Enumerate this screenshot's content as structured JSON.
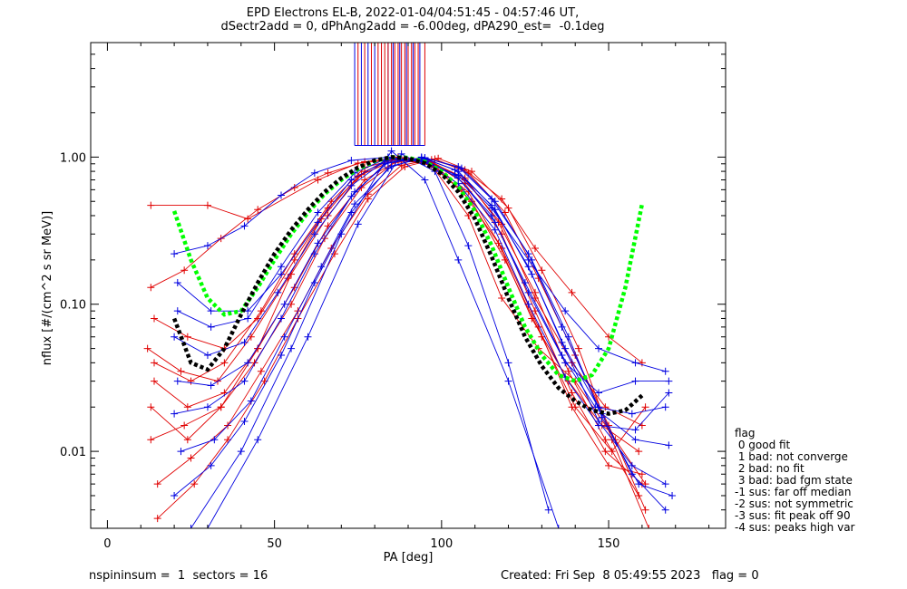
{
  "title_line1": "EPD Electrons EL-B, 2022-01-04/04:51:45 - 04:57:46 UT,",
  "title_line2": "dSectr2add = 0, dPhAng2add = -6.00deg, dPA290_est=  -0.1deg",
  "footer": {
    "left": "nspininsum =  1  sectors = 16",
    "right": "Created: Fri Sep  8 05:49:55 2023   flag = 0"
  },
  "flag_legend": [
    "flag",
    " 0 good fit",
    " 1 bad: not converge",
    " 2 bad: no fit",
    " 3 bad: bad fgm state",
    "-1 sus: far off median",
    "-2 sus: not symmetric",
    "-3 sus: fit peak off 90",
    "-4 sus: peaks high var"
  ],
  "colors": {
    "red_series": "#e00000",
    "blue_series": "#0000e0",
    "green_fit": "#00ff00",
    "black_fit": "#000000"
  },
  "chart_data": {
    "type": "line",
    "xlabel": "PA [deg]",
    "ylabel": "nflux [#/(cm^2 s sr MeV)]",
    "xlim": [
      -5,
      185
    ],
    "ylim": [
      0.003,
      6
    ],
    "yscale": "log",
    "x_ticks": [
      0,
      50,
      100,
      150
    ],
    "y_ticks": [
      {
        "value": 0.01,
        "label": "0.01"
      },
      {
        "value": 0.1,
        "label": "0.10"
      },
      {
        "value": 1.0,
        "label": "1.00"
      }
    ],
    "grid": false,
    "series": [
      {
        "color": "red",
        "x": [
          13,
          30,
          42,
          63,
          75,
          88,
          97,
          108,
          118,
          129,
          140,
          152,
          161
        ],
        "y": [
          0.47,
          0.47,
          0.38,
          0.7,
          0.91,
          0.97,
          0.88,
          0.4,
          0.11,
          0.05,
          0.03,
          0.012,
          0.006
        ]
      },
      {
        "color": "red",
        "x": [
          13,
          23,
          34,
          45,
          56,
          66,
          77,
          87,
          97,
          107,
          118,
          128,
          139,
          150,
          160
        ],
        "y": [
          0.13,
          0.17,
          0.28,
          0.44,
          0.62,
          0.78,
          0.93,
          0.99,
          0.96,
          0.82,
          0.52,
          0.24,
          0.12,
          0.06,
          0.04
        ]
      },
      {
        "color": "red",
        "x": [
          14,
          24,
          35,
          45,
          56,
          66,
          77,
          87,
          97,
          107,
          118,
          128,
          139,
          149,
          160
        ],
        "y": [
          0.08,
          0.06,
          0.05,
          0.08,
          0.2,
          0.45,
          0.8,
          1.0,
          0.93,
          0.7,
          0.35,
          0.11,
          0.04,
          0.02,
          0.015
        ]
      },
      {
        "color": "red",
        "x": [
          12,
          22,
          33,
          43,
          54,
          64,
          75,
          86,
          96,
          106,
          117,
          127,
          138,
          148,
          159
        ],
        "y": [
          0.05,
          0.035,
          0.03,
          0.06,
          0.15,
          0.38,
          0.74,
          0.96,
          0.9,
          0.6,
          0.26,
          0.08,
          0.03,
          0.015,
          0.01
        ]
      },
      {
        "color": "red",
        "x": [
          14,
          24,
          35,
          45,
          56,
          66,
          77,
          87,
          97,
          107,
          118,
          128,
          139,
          149,
          160
        ],
        "y": [
          0.03,
          0.02,
          0.025,
          0.05,
          0.13,
          0.34,
          0.7,
          0.95,
          0.92,
          0.66,
          0.3,
          0.09,
          0.025,
          0.01,
          0.006
        ]
      },
      {
        "color": "red",
        "x": [
          13,
          23,
          34,
          44,
          55,
          65,
          76,
          86,
          96,
          107,
          117,
          128,
          138,
          149,
          159
        ],
        "y": [
          0.012,
          0.015,
          0.02,
          0.04,
          0.1,
          0.28,
          0.62,
          0.92,
          0.94,
          0.72,
          0.36,
          0.12,
          0.035,
          0.012,
          0.005
        ]
      },
      {
        "color": "red",
        "x": [
          15,
          25,
          36,
          46,
          57,
          67,
          78,
          88,
          98,
          108,
          119,
          129,
          140,
          150,
          161
        ],
        "y": [
          0.006,
          0.009,
          0.015,
          0.035,
          0.09,
          0.24,
          0.56,
          0.88,
          0.97,
          0.78,
          0.42,
          0.15,
          0.045,
          0.015,
          0.004
        ]
      },
      {
        "color": "red",
        "x": [
          15,
          26,
          36,
          47,
          57,
          68,
          78,
          89,
          99,
          109,
          120,
          130,
          141,
          151,
          162
        ],
        "y": [
          0.0035,
          0.006,
          0.012,
          0.03,
          0.08,
          0.22,
          0.52,
          0.86,
          0.98,
          0.8,
          0.45,
          0.17,
          0.05,
          0.012,
          0.003
        ]
      },
      {
        "color": "red",
        "x": [
          13,
          24,
          34,
          45,
          55,
          66,
          76,
          87,
          97,
          108,
          118,
          129,
          139,
          150,
          160
        ],
        "y": [
          0.02,
          0.012,
          0.02,
          0.05,
          0.16,
          0.4,
          0.76,
          0.98,
          0.9,
          0.58,
          0.24,
          0.07,
          0.02,
          0.008,
          0.007
        ]
      },
      {
        "color": "red",
        "x": [
          14,
          25,
          35,
          46,
          56,
          67,
          77,
          88,
          98,
          109,
          119,
          130,
          140,
          151,
          161
        ],
        "y": [
          0.04,
          0.03,
          0.04,
          0.09,
          0.22,
          0.5,
          0.85,
          0.99,
          0.86,
          0.5,
          0.2,
          0.06,
          0.02,
          0.01,
          0.02
        ]
      },
      {
        "color": "blue",
        "x": [
          20,
          30,
          41,
          52,
          62,
          73,
          84,
          94,
          105,
          115,
          126,
          137,
          147,
          158,
          167
        ],
        "y": [
          0.22,
          0.25,
          0.34,
          0.55,
          0.78,
          0.95,
          1.0,
          0.94,
          0.75,
          0.45,
          0.2,
          0.09,
          0.05,
          0.04,
          0.035
        ]
      },
      {
        "color": "blue",
        "x": [
          21,
          31,
          42,
          52,
          63,
          73,
          84,
          95,
          105,
          116,
          126,
          137,
          147,
          158,
          168
        ],
        "y": [
          0.14,
          0.09,
          0.09,
          0.16,
          0.36,
          0.7,
          0.97,
          0.96,
          0.72,
          0.36,
          0.12,
          0.04,
          0.025,
          0.03,
          0.03
        ]
      },
      {
        "color": "blue",
        "x": [
          20,
          30,
          41,
          51,
          62,
          73,
          83,
          94,
          104,
          115,
          125,
          136,
          146,
          157,
          167
        ],
        "y": [
          0.06,
          0.045,
          0.055,
          0.12,
          0.3,
          0.64,
          0.94,
          0.97,
          0.76,
          0.4,
          0.14,
          0.045,
          0.02,
          0.018,
          0.02
        ]
      },
      {
        "color": "blue",
        "x": [
          21,
          31,
          42,
          53,
          63,
          74,
          84,
          95,
          105,
          116,
          127,
          137,
          148,
          158,
          168
        ],
        "y": [
          0.03,
          0.028,
          0.04,
          0.1,
          0.26,
          0.58,
          0.92,
          0.98,
          0.8,
          0.44,
          0.16,
          0.05,
          0.018,
          0.012,
          0.011
        ]
      },
      {
        "color": "blue",
        "x": [
          20,
          30,
          41,
          52,
          62,
          73,
          83,
          94,
          104,
          115,
          126,
          136,
          147,
          157,
          167
        ],
        "y": [
          0.018,
          0.02,
          0.03,
          0.08,
          0.22,
          0.54,
          0.9,
          0.99,
          0.82,
          0.47,
          0.18,
          0.055,
          0.016,
          0.008,
          0.006
        ]
      },
      {
        "color": "blue",
        "x": [
          22,
          32,
          43,
          53,
          64,
          74,
          85,
          95,
          106,
          116,
          127,
          138,
          148,
          159,
          169
        ],
        "y": [
          0.01,
          0.012,
          0.022,
          0.06,
          0.18,
          0.48,
          0.87,
          0.99,
          0.84,
          0.5,
          0.2,
          0.06,
          0.017,
          0.006,
          0.005
        ]
      },
      {
        "color": "blue",
        "x": [
          20,
          31,
          41,
          52,
          62,
          73,
          84,
          94,
          105,
          115,
          126,
          136,
          147,
          157,
          167
        ],
        "y": [
          0.005,
          0.008,
          0.016,
          0.045,
          0.14,
          0.42,
          0.84,
          1.0,
          0.86,
          0.52,
          0.22,
          0.07,
          0.02,
          0.007,
          0.004
        ]
      },
      {
        "color": "blue",
        "x": [
          25,
          40,
          55,
          70,
          85,
          95,
          105,
          120,
          135
        ],
        "y": [
          0.003,
          0.01,
          0.05,
          0.3,
          1.1,
          0.7,
          0.2,
          0.03,
          0.003
        ]
      },
      {
        "color": "blue",
        "x": [
          30,
          45,
          60,
          75,
          88,
          98,
          108,
          120,
          132
        ],
        "y": [
          0.003,
          0.012,
          0.06,
          0.35,
          1.05,
          0.8,
          0.25,
          0.04,
          0.004
        ]
      },
      {
        "color": "blue",
        "x": [
          21,
          31,
          42,
          52,
          63,
          74,
          84,
          95,
          105,
          116,
          126,
          137,
          147,
          158,
          168
        ],
        "y": [
          0.09,
          0.07,
          0.08,
          0.18,
          0.42,
          0.78,
          0.99,
          0.92,
          0.66,
          0.32,
          0.1,
          0.032,
          0.015,
          0.014,
          0.025
        ]
      }
    ],
    "fits": [
      {
        "color": "green",
        "x": [
          20,
          25,
          30,
          35,
          40,
          45,
          50,
          55,
          60,
          65,
          70,
          75,
          80,
          85,
          90,
          95,
          100,
          105,
          110,
          115,
          120,
          125,
          130,
          135,
          140,
          145,
          150,
          155,
          160
        ],
        "y": [
          0.43,
          0.2,
          0.11,
          0.085,
          0.09,
          0.13,
          0.2,
          0.3,
          0.42,
          0.56,
          0.7,
          0.83,
          0.94,
          1.0,
          0.99,
          0.93,
          0.8,
          0.63,
          0.43,
          0.25,
          0.13,
          0.07,
          0.045,
          0.033,
          0.03,
          0.033,
          0.05,
          0.13,
          0.48
        ]
      },
      {
        "color": "black",
        "x": [
          20,
          25,
          30,
          35,
          40,
          45,
          50,
          55,
          60,
          65,
          70,
          75,
          80,
          85,
          90,
          95,
          100,
          105,
          110,
          115,
          120,
          125,
          130,
          135,
          140,
          145,
          150,
          155,
          160
        ],
        "y": [
          0.08,
          0.04,
          0.036,
          0.05,
          0.085,
          0.14,
          0.22,
          0.32,
          0.44,
          0.58,
          0.72,
          0.85,
          0.95,
          1.0,
          0.98,
          0.91,
          0.77,
          0.58,
          0.38,
          0.21,
          0.11,
          0.06,
          0.038,
          0.027,
          0.022,
          0.019,
          0.018,
          0.019,
          0.024
        ]
      }
    ],
    "vertical_markers": {
      "y_bottom": 1.2,
      "red_x": [
        75,
        77,
        79,
        81,
        82,
        83,
        84,
        85,
        86,
        87,
        88,
        89,
        90,
        91,
        92,
        93,
        95
      ],
      "blue_x": [
        74,
        76,
        78,
        80,
        82,
        84,
        85.5,
        87.5,
        89.5,
        91.5,
        93.5
      ]
    }
  }
}
